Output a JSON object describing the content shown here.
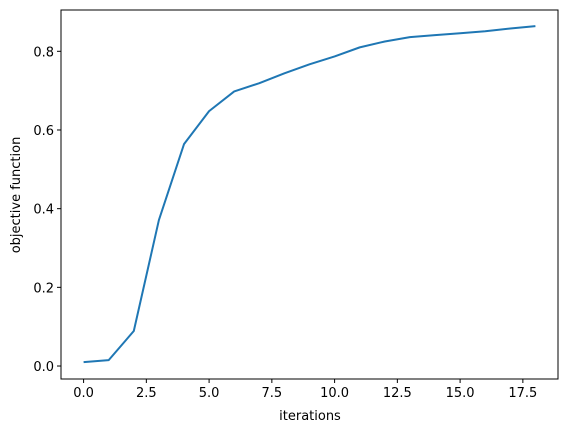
{
  "chart_data": {
    "type": "line",
    "x_label": "iterations",
    "y_label": "objective function",
    "x": [
      0,
      1,
      2,
      3,
      4,
      5,
      6,
      7,
      8,
      9,
      10,
      11,
      12,
      13,
      14,
      15,
      16,
      17,
      18
    ],
    "series": [
      {
        "color": "#1f77b4",
        "values": [
          0.01,
          0.015,
          0.089,
          0.371,
          0.564,
          0.648,
          0.698,
          0.719,
          0.744,
          0.767,
          0.787,
          0.81,
          0.825,
          0.836,
          0.841,
          0.846,
          0.851,
          0.858,
          0.864
        ]
      }
    ],
    "xlim": [
      -0.9,
      18.9
    ],
    "ylim": [
      -0.033,
      0.905
    ],
    "xticks": [
      {
        "value": 0,
        "label": "0.0"
      },
      2.5,
      {
        "value": 5,
        "label": "5.0"
      },
      7.5,
      {
        "value": 10,
        "label": "10.0"
      },
      12.5,
      {
        "value": 15,
        "label": "15.0"
      },
      17.5
    ],
    "yticks": [
      {
        "value": 0,
        "label": "0.0"
      },
      0.2,
      0.4,
      0.6,
      0.8
    ]
  }
}
